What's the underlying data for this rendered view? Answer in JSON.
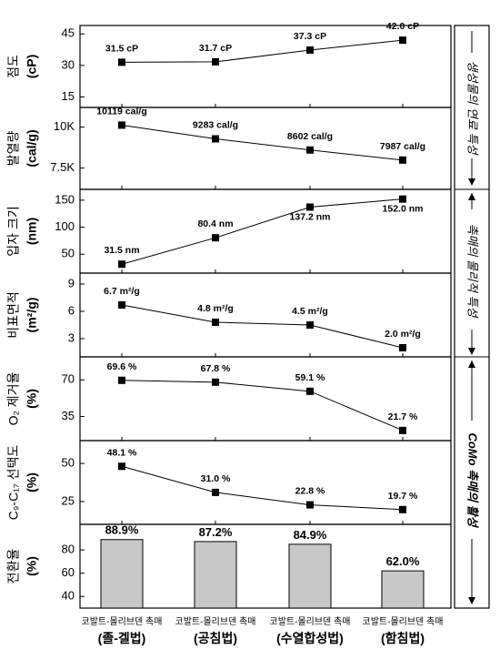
{
  "chart_data": [
    {
      "type": "line",
      "ylabel": "점도",
      "yunit": "(cP)",
      "categories": [
        "코발트-몰리브덴 촉매 (졸-겔법)",
        "코발트-몰리브덴 촉매 (공침법)",
        "코발트-몰리브덴 촉매 (수열합성법)",
        "코발트-몰리브덴 촉매 (함침법)"
      ],
      "values": [
        31.5,
        31.7,
        37.3,
        42.0
      ],
      "point_labels": [
        "31.5 cP",
        "31.7 cP",
        "37.3 cP",
        "42.0 cP"
      ],
      "yticks": [
        "15",
        "30",
        "45"
      ],
      "ylim": [
        10,
        49
      ]
    },
    {
      "type": "line",
      "ylabel": "발열량",
      "yunit": "(cal/g)",
      "values": [
        10119,
        9283,
        8602,
        7987
      ],
      "point_labels": [
        "10119 cal/g",
        "9283 cal/g",
        "8602 cal/g",
        "7987 cal/g"
      ],
      "yticks": [
        "7.5K",
        "10K"
      ],
      "ylim": [
        6200,
        11200
      ]
    },
    {
      "type": "line",
      "ylabel": "입자 크기",
      "yunit": "(nm)",
      "values": [
        31.5,
        80.4,
        137.2,
        152.0
      ],
      "point_labels": [
        "31.5 nm",
        "80.4 nm",
        "137.2 nm",
        "152.0 nm"
      ],
      "yticks": [
        "50",
        "100",
        "150"
      ],
      "ylim": [
        15,
        170
      ]
    },
    {
      "type": "line",
      "ylabel": "비표면적",
      "yunit": "(m²/g)",
      "values": [
        6.7,
        4.8,
        4.5,
        2.0
      ],
      "point_labels": [
        "6.7 m²/g",
        "4.8 m²/g",
        "4.5 m²/g",
        "2.0 m²/g"
      ],
      "yticks": [
        "3",
        "6",
        "9"
      ],
      "ylim": [
        1,
        10.2
      ]
    },
    {
      "type": "line",
      "ylabel": "O₂ 제거율",
      "yunit": "(%)",
      "values": [
        69.6,
        67.8,
        59.1,
        21.7
      ],
      "point_labels": [
        "69.6 %",
        "67.8 %",
        "59.1 %",
        "21.7 %"
      ],
      "yticks": [
        "35",
        "70"
      ],
      "ylim": [
        12,
        92
      ]
    },
    {
      "type": "line",
      "ylabel": "C₉-C₁₇ 선택도",
      "yunit": "(%)",
      "values": [
        48.1,
        31.0,
        22.8,
        19.7
      ],
      "point_labels": [
        "48.1 %",
        "31.0 %",
        "22.8 %",
        "19.7 %"
      ],
      "yticks": [
        "25",
        "50"
      ],
      "ylim": [
        10,
        65
      ]
    },
    {
      "type": "bar",
      "ylabel": "전환율",
      "yunit": "(%)",
      "values": [
        88.9,
        87.2,
        84.9,
        62.0
      ],
      "point_labels": [
        "88.9%",
        "87.2%",
        "84.9%",
        "62.0%"
      ],
      "yticks": [
        "40",
        "60",
        "80"
      ],
      "ylim": [
        30,
        102
      ]
    }
  ],
  "x_axis": {
    "line1": [
      "코발트-몰리브덴 촉매",
      "코발트-몰리브덴 촉매",
      "코발트-몰리브덴 촉매",
      "코발트-몰리브덴 촉매"
    ],
    "line2": [
      "(졸-겔법)",
      "(공침법)",
      "(수열합성법)",
      "(함침법)"
    ]
  },
  "side_labels": [
    "생성물의 연료 특성",
    "촉매의 물리적 특성",
    "CoMo 촉매의 활성"
  ]
}
